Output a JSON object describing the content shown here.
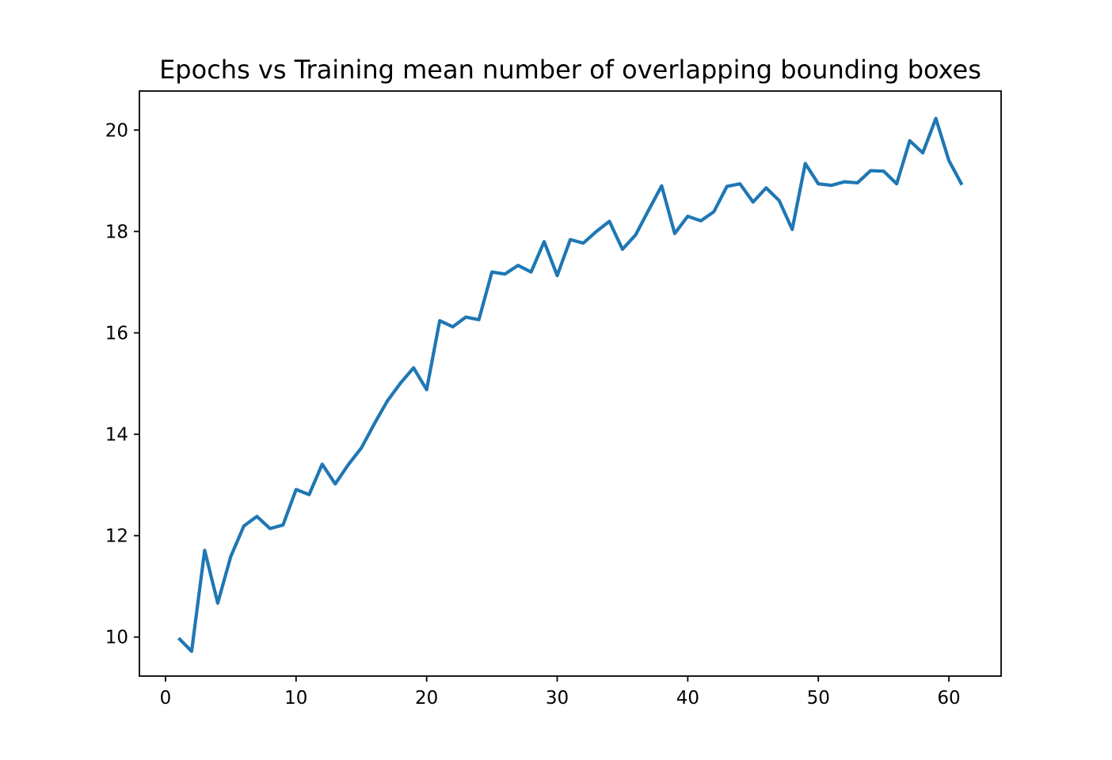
{
  "chart_data": {
    "type": "line",
    "title": "Epochs vs Training mean number of overlapping bounding boxes",
    "xlabel": "",
    "ylabel": "",
    "xlim": [
      -2,
      64
    ],
    "ylim": [
      9.23,
      20.77
    ],
    "xticks": [
      0,
      10,
      20,
      30,
      40,
      50,
      60
    ],
    "yticks": [
      10,
      12,
      14,
      16,
      18,
      20
    ],
    "xtick_labels": [
      "0",
      "10",
      "20",
      "30",
      "40",
      "50",
      "60"
    ],
    "ytick_labels": [
      "10",
      "12",
      "14",
      "16",
      "18",
      "20"
    ],
    "grid": false,
    "legend": "none",
    "series": [
      {
        "color": "#1f77b4",
        "x": [
          1,
          2,
          3,
          4,
          5,
          6,
          7,
          8,
          9,
          10,
          11,
          12,
          13,
          14,
          15,
          16,
          17,
          18,
          19,
          20,
          21,
          22,
          23,
          24,
          25,
          26,
          27,
          28,
          29,
          30,
          31,
          32,
          33,
          34,
          35,
          36,
          37,
          38,
          39,
          40,
          41,
          42,
          43,
          44,
          45,
          46,
          47,
          48,
          49,
          50,
          51,
          52,
          53,
          54,
          55,
          56,
          57,
          58,
          59,
          60,
          61
        ],
        "y": [
          9.98,
          9.72,
          11.71,
          10.67,
          11.59,
          12.19,
          12.38,
          12.14,
          12.21,
          12.91,
          12.81,
          13.41,
          13.02,
          13.4,
          13.73,
          14.21,
          14.66,
          15.01,
          15.31,
          14.88,
          16.24,
          16.12,
          16.31,
          16.26,
          17.2,
          17.16,
          17.33,
          17.2,
          17.8,
          17.13,
          17.84,
          17.77,
          18.0,
          18.2,
          17.65,
          17.93,
          18.42,
          18.9,
          17.96,
          18.3,
          18.21,
          18.39,
          18.89,
          18.94,
          18.58,
          18.86,
          18.61,
          18.04,
          19.34,
          18.94,
          18.91,
          18.98,
          18.96,
          19.2,
          19.19,
          18.94,
          19.79,
          19.55,
          20.23,
          19.4,
          18.92
        ]
      }
    ]
  }
}
